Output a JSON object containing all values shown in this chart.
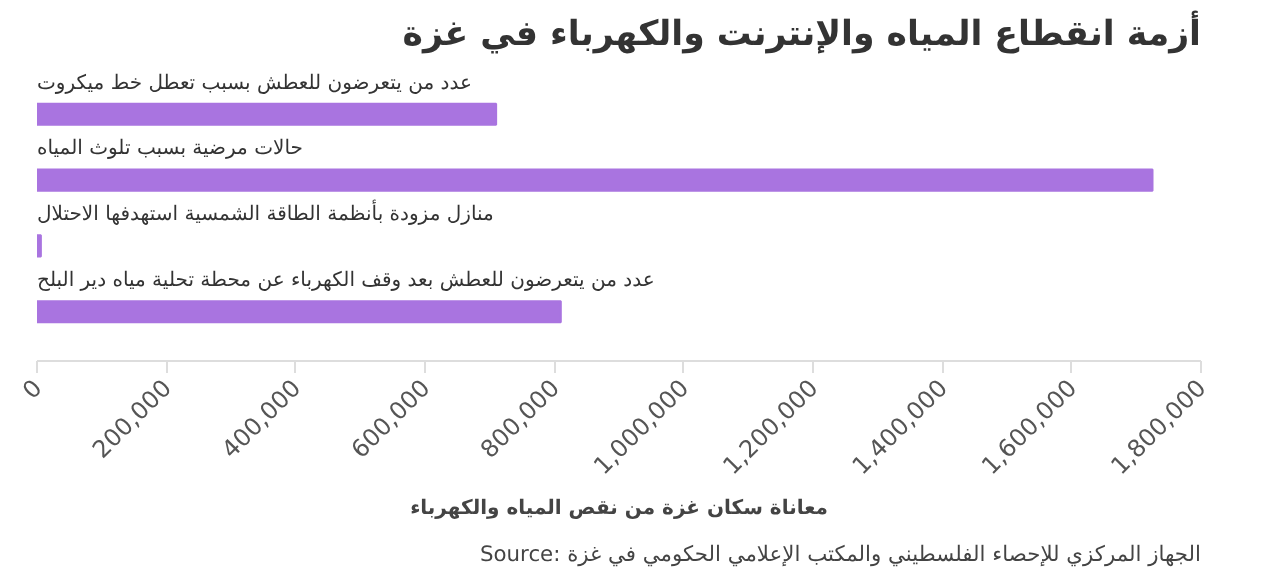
{
  "chart_data": {
    "type": "bar",
    "orientation": "horizontal",
    "title": "أزمة انقطاع المياه والإنترنت والكهرباء في غزة",
    "xlabel": "معاناة سكان غزة من نقص المياه والكهرباء",
    "categories": [
      "عدد من يتعرضون للعطش بسبب تعطل خط ميكروت",
      "حالات مرضية بسبب تلوث المياه",
      "منازل مزودة بأنظمة الطاقة الشمسية استهدفها الاحتلال",
      "عدد من يتعرضون للعطش بعد وقف الكهرباء عن محطة تحلية مياه دير البلح"
    ],
    "values": [
      710000,
      1725000,
      6000,
      810000
    ],
    "color": "#a974e0",
    "xlim": [
      0,
      1800000
    ],
    "xticks": [
      {
        "value": 0,
        "label": "0"
      },
      {
        "value": 200000,
        "label": "200,000"
      },
      {
        "value": 400000,
        "label": "400,000"
      },
      {
        "value": 600000,
        "label": "600,000"
      },
      {
        "value": 800000,
        "label": "800,000"
      },
      {
        "value": 1000000,
        "label": "1,000,000"
      },
      {
        "value": 1200000,
        "label": "1,200,000"
      },
      {
        "value": 1400000,
        "label": "1,400,000"
      },
      {
        "value": 1600000,
        "label": "1,600,000"
      },
      {
        "value": 1800000,
        "label": "1,800,000"
      }
    ],
    "grid": false,
    "annotations": [
      "Source: الجهاز المركزي للإحصاء الفلسطيني والمكتب الإعلامي الحكومي في غزة"
    ]
  }
}
